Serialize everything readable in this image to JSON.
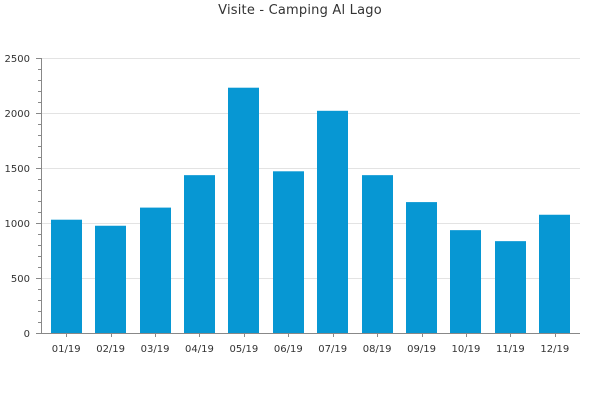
{
  "colors": {
    "bar": "#0797d3",
    "grid": "#e3e3e3",
    "axis": "#888888",
    "text": "#333333"
  },
  "chart_data": {
    "type": "bar",
    "title": "Visite - Camping Al Lago",
    "xlabel": "",
    "ylabel": "",
    "categories": [
      "01/19",
      "02/19",
      "03/19",
      "04/19",
      "05/19",
      "06/19",
      "07/19",
      "08/19",
      "09/19",
      "10/19",
      "11/19",
      "12/19"
    ],
    "values": [
      1030,
      975,
      1140,
      1435,
      2230,
      1470,
      2020,
      1435,
      1190,
      935,
      835,
      1075
    ],
    "ylim": [
      0,
      2500
    ],
    "yticks": [
      0,
      500,
      1000,
      1500,
      2000,
      2500
    ],
    "grid": true,
    "legend": "none"
  }
}
